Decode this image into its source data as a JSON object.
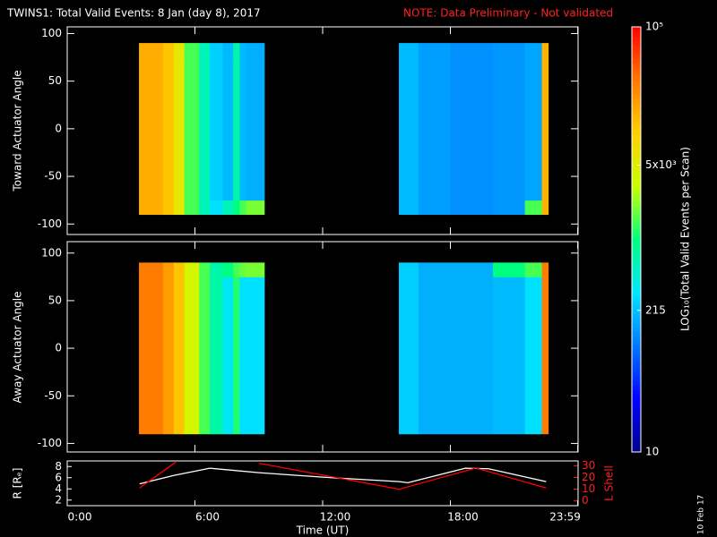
{
  "chart_data": [
    {
      "type": "heatmap",
      "title": "TWINS1: Total Valid Events:  8 Jan (day   8), 2017",
      "note": "NOTE: Data Preliminary - Not validated",
      "ylabel": "Toward Actuator Angle",
      "x_bins": [
        3.37,
        4.5,
        5,
        5.5,
        6.2,
        6.7,
        7.3,
        7.8,
        8.1,
        8.4,
        9.26,
        15.58,
        16.5,
        18,
        20,
        21.5,
        22.3,
        22.6
      ],
      "y_bins": [
        -90,
        -75,
        75,
        90
      ],
      "values": [
        [
          16000,
          12000,
          6000,
          1500,
          600,
          300,
          600,
          1000,
          1500,
          2000,
          null,
          200,
          150,
          130,
          140,
          1500,
          15000
        ],
        [
          16000,
          12000,
          6000,
          1500,
          600,
          250,
          200,
          700,
          200,
          180,
          null,
          200,
          150,
          130,
          140,
          160,
          15000
        ],
        [
          16000,
          12000,
          6000,
          1500,
          600,
          250,
          200,
          700,
          200,
          180,
          null,
          200,
          150,
          130,
          140,
          160,
          15000
        ]
      ],
      "xlim": [
        0,
        24
      ],
      "ylim": [
        -111,
        107
      ],
      "yticks": [
        -100,
        -50,
        0,
        50,
        100
      ]
    },
    {
      "type": "heatmap",
      "ylabel": "Away Actuator Angle",
      "x_bins": [
        3.37,
        4.5,
        5,
        5.5,
        6.2,
        6.7,
        7.3,
        7.8,
        8.1,
        8.4,
        9.26,
        15.58,
        16.5,
        18,
        20,
        21.5,
        22.3,
        22.6
      ],
      "y_bins": [
        -90,
        -75,
        75,
        90
      ],
      "values": [
        [
          30000,
          20000,
          12000,
          4000,
          1500,
          700,
          350,
          1200,
          300,
          300,
          null,
          250,
          180,
          180,
          200,
          300,
          30000
        ],
        [
          30000,
          20000,
          12000,
          4000,
          1500,
          700,
          350,
          1200,
          300,
          300,
          null,
          250,
          180,
          180,
          200,
          300,
          30000
        ],
        [
          30000,
          20000,
          12000,
          4000,
          1500,
          700,
          1000,
          1500,
          1800,
          2000,
          null,
          250,
          180,
          180,
          1000,
          1500,
          30000
        ]
      ],
      "xlim": [
        0,
        24
      ],
      "ylim": [
        -109,
        112
      ],
      "yticks": [
        -100,
        -50,
        0,
        50,
        100
      ]
    },
    {
      "type": "line",
      "ylabel": "R [Rₑ]",
      "y2label": "L Shell",
      "xlabel": "Time (UT)",
      "xlim": [
        0,
        24
      ],
      "xticks": [
        {
          "value": 0,
          "label": "0:00"
        },
        {
          "value": 6,
          "label": "6:00"
        },
        {
          "value": 12,
          "label": "12:00"
        },
        {
          "value": 18,
          "label": "18:00"
        },
        {
          "value": 23.983,
          "label": "23:59"
        }
      ],
      "ylim": [
        1,
        9
      ],
      "yticks": [
        2,
        4,
        6,
        8
      ],
      "y2lim": [
        -4,
        34
      ],
      "y2ticks": [
        0,
        10,
        20,
        30
      ],
      "series": [
        {
          "color": "#ffffff",
          "x": [
            3.4,
            5,
            6.7,
            9,
            12,
            15.6,
            16,
            18.7,
            19.8,
            22.5
          ],
          "values": [
            4.9,
            6.4,
            7.7,
            6.9,
            6.1,
            5.3,
            5.1,
            7.7,
            7.6,
            5.3
          ]
        },
        {
          "color": "#ff0000",
          "axis": "y2",
          "x": [
            3.4,
            5.1,
            7,
            9,
            15.6,
            19.2,
            22.5
          ],
          "values": [
            11,
            33,
            null,
            32,
            10,
            28,
            11
          ]
        }
      ]
    }
  ],
  "colorbar": {
    "label": "LOG₁₀(Total Valid Events per Scan)",
    "log": true,
    "lim": [
      10,
      100000
    ],
    "ticks": [
      {
        "value": 10,
        "label": "10"
      },
      {
        "value": 215,
        "label": "215"
      },
      {
        "value": 5000,
        "label": "5x10³"
      },
      {
        "value": 100000,
        "label": "10⁵"
      }
    ],
    "colors": [
      "#00008c",
      "#0000ff",
      "#0078ff",
      "#00e6ff",
      "#00ff80",
      "#c8ff00",
      "#ffd200",
      "#ff7800",
      "#ff0000"
    ]
  },
  "footer_date": "10 Feb 17"
}
